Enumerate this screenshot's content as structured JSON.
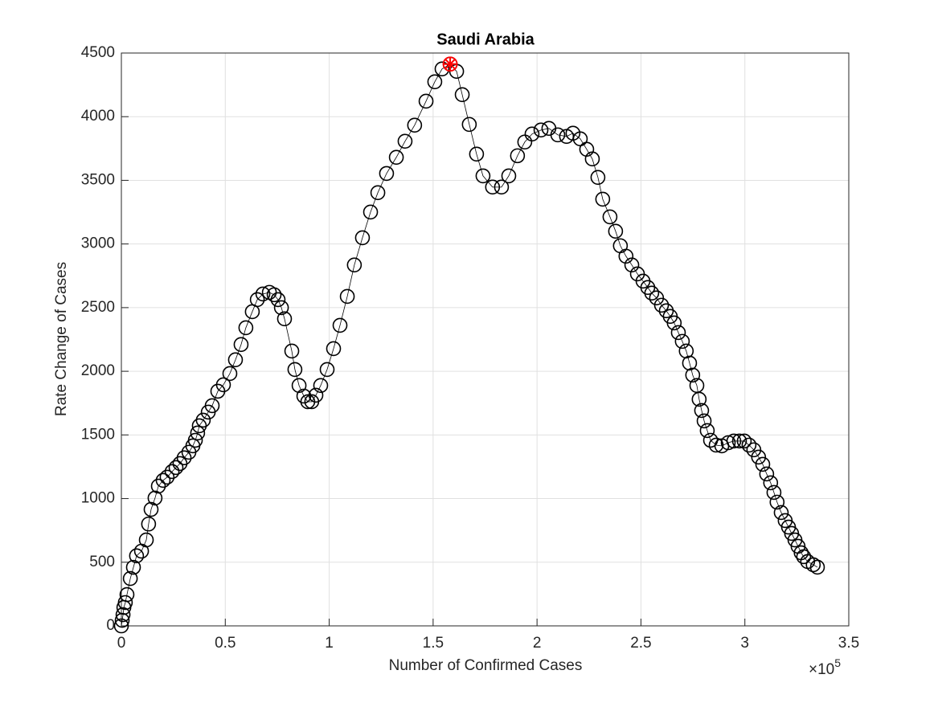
{
  "chart_data": {
    "type": "line",
    "title": "Saudi Arabia",
    "x_label": "Number of Confirmed Cases",
    "y_label": "Rate Change of Cases",
    "x_multiplier": {
      "base": "×10",
      "exponent": "5"
    },
    "xlim": [
      0,
      3.5
    ],
    "xticks": [
      0,
      0.5,
      1,
      1.5,
      2,
      2.5,
      3,
      3.5
    ],
    "ylim": [
      0,
      4500
    ],
    "yticks": [
      0,
      500,
      1000,
      1500,
      2000,
      2500,
      3000,
      3500,
      4000,
      4500
    ],
    "grid": true,
    "series": [
      {
        "color": "#000000",
        "marker": "circle",
        "x": [
          0,
          0.004,
          0.008,
          0.012,
          0.019,
          0.027,
          0.043,
          0.058,
          0.073,
          0.097,
          0.12,
          0.131,
          0.143,
          0.162,
          0.178,
          0.201,
          0.22,
          0.244,
          0.263,
          0.282,
          0.302,
          0.325,
          0.344,
          0.356,
          0.367,
          0.375,
          0.394,
          0.418,
          0.437,
          0.464,
          0.491,
          0.522,
          0.549,
          0.576,
          0.599,
          0.63,
          0.654,
          0.681,
          0.712,
          0.735,
          0.754,
          0.77,
          0.785,
          0.82,
          0.835,
          0.855,
          0.878,
          0.897,
          0.916,
          0.936,
          0.959,
          0.99,
          1.021,
          1.052,
          1.087,
          1.121,
          1.16,
          1.199,
          1.234,
          1.276,
          1.323,
          1.365,
          1.411,
          1.466,
          1.508,
          1.543,
          1.582,
          1.613,
          1.64,
          1.674,
          1.709,
          1.74,
          1.786,
          1.829,
          1.864,
          1.906,
          1.941,
          1.976,
          2.019,
          2.057,
          2.1,
          2.142,
          2.173,
          2.208,
          2.239,
          2.266,
          2.293,
          2.316,
          2.351,
          2.378,
          2.401,
          2.428,
          2.456,
          2.483,
          2.51,
          2.533,
          2.552,
          2.575,
          2.599,
          2.622,
          2.641,
          2.66,
          2.68,
          2.699,
          2.718,
          2.734,
          2.749,
          2.769,
          2.78,
          2.792,
          2.804,
          2.819,
          2.835,
          2.862,
          2.889,
          2.92,
          2.947,
          2.974,
          2.997,
          3.02,
          3.043,
          3.066,
          3.086,
          3.105,
          3.124,
          3.14,
          3.155,
          3.175,
          3.194,
          3.21,
          3.225,
          3.241,
          3.256,
          3.271,
          3.283,
          3.302,
          3.329,
          3.349
        ],
        "values": [
          0,
          44,
          88,
          145,
          183,
          246,
          372,
          460,
          550,
          587,
          675,
          800,
          915,
          1004,
          1098,
          1143,
          1168,
          1212,
          1244,
          1275,
          1320,
          1364,
          1414,
          1458,
          1515,
          1572,
          1616,
          1679,
          1730,
          1843,
          1894,
          1982,
          2090,
          2210,
          2342,
          2468,
          2563,
          2607,
          2620,
          2601,
          2563,
          2500,
          2412,
          2159,
          2014,
          1888,
          1805,
          1761,
          1761,
          1812,
          1888,
          2014,
          2178,
          2361,
          2588,
          2835,
          3049,
          3251,
          3403,
          3554,
          3681,
          3807,
          3933,
          4122,
          4274,
          4375,
          4413,
          4356,
          4173,
          3939,
          3706,
          3535,
          3447,
          3447,
          3535,
          3693,
          3801,
          3864,
          3895,
          3908,
          3857,
          3845,
          3870,
          3826,
          3744,
          3668,
          3523,
          3352,
          3213,
          3100,
          2986,
          2904,
          2835,
          2765,
          2708,
          2658,
          2614,
          2576,
          2519,
          2475,
          2431,
          2380,
          2304,
          2235,
          2159,
          2064,
          1970,
          1888,
          1780,
          1692,
          1610,
          1534,
          1458,
          1420,
          1414,
          1439,
          1452,
          1452,
          1452,
          1420,
          1383,
          1326,
          1269,
          1193,
          1124,
          1048,
          972,
          890,
          827,
          776,
          726,
          675,
          625,
          574,
          543,
          505,
          480,
          461
        ]
      }
    ],
    "peak": {
      "x": 1.582,
      "y": 4413,
      "color": "#ff0000"
    }
  }
}
